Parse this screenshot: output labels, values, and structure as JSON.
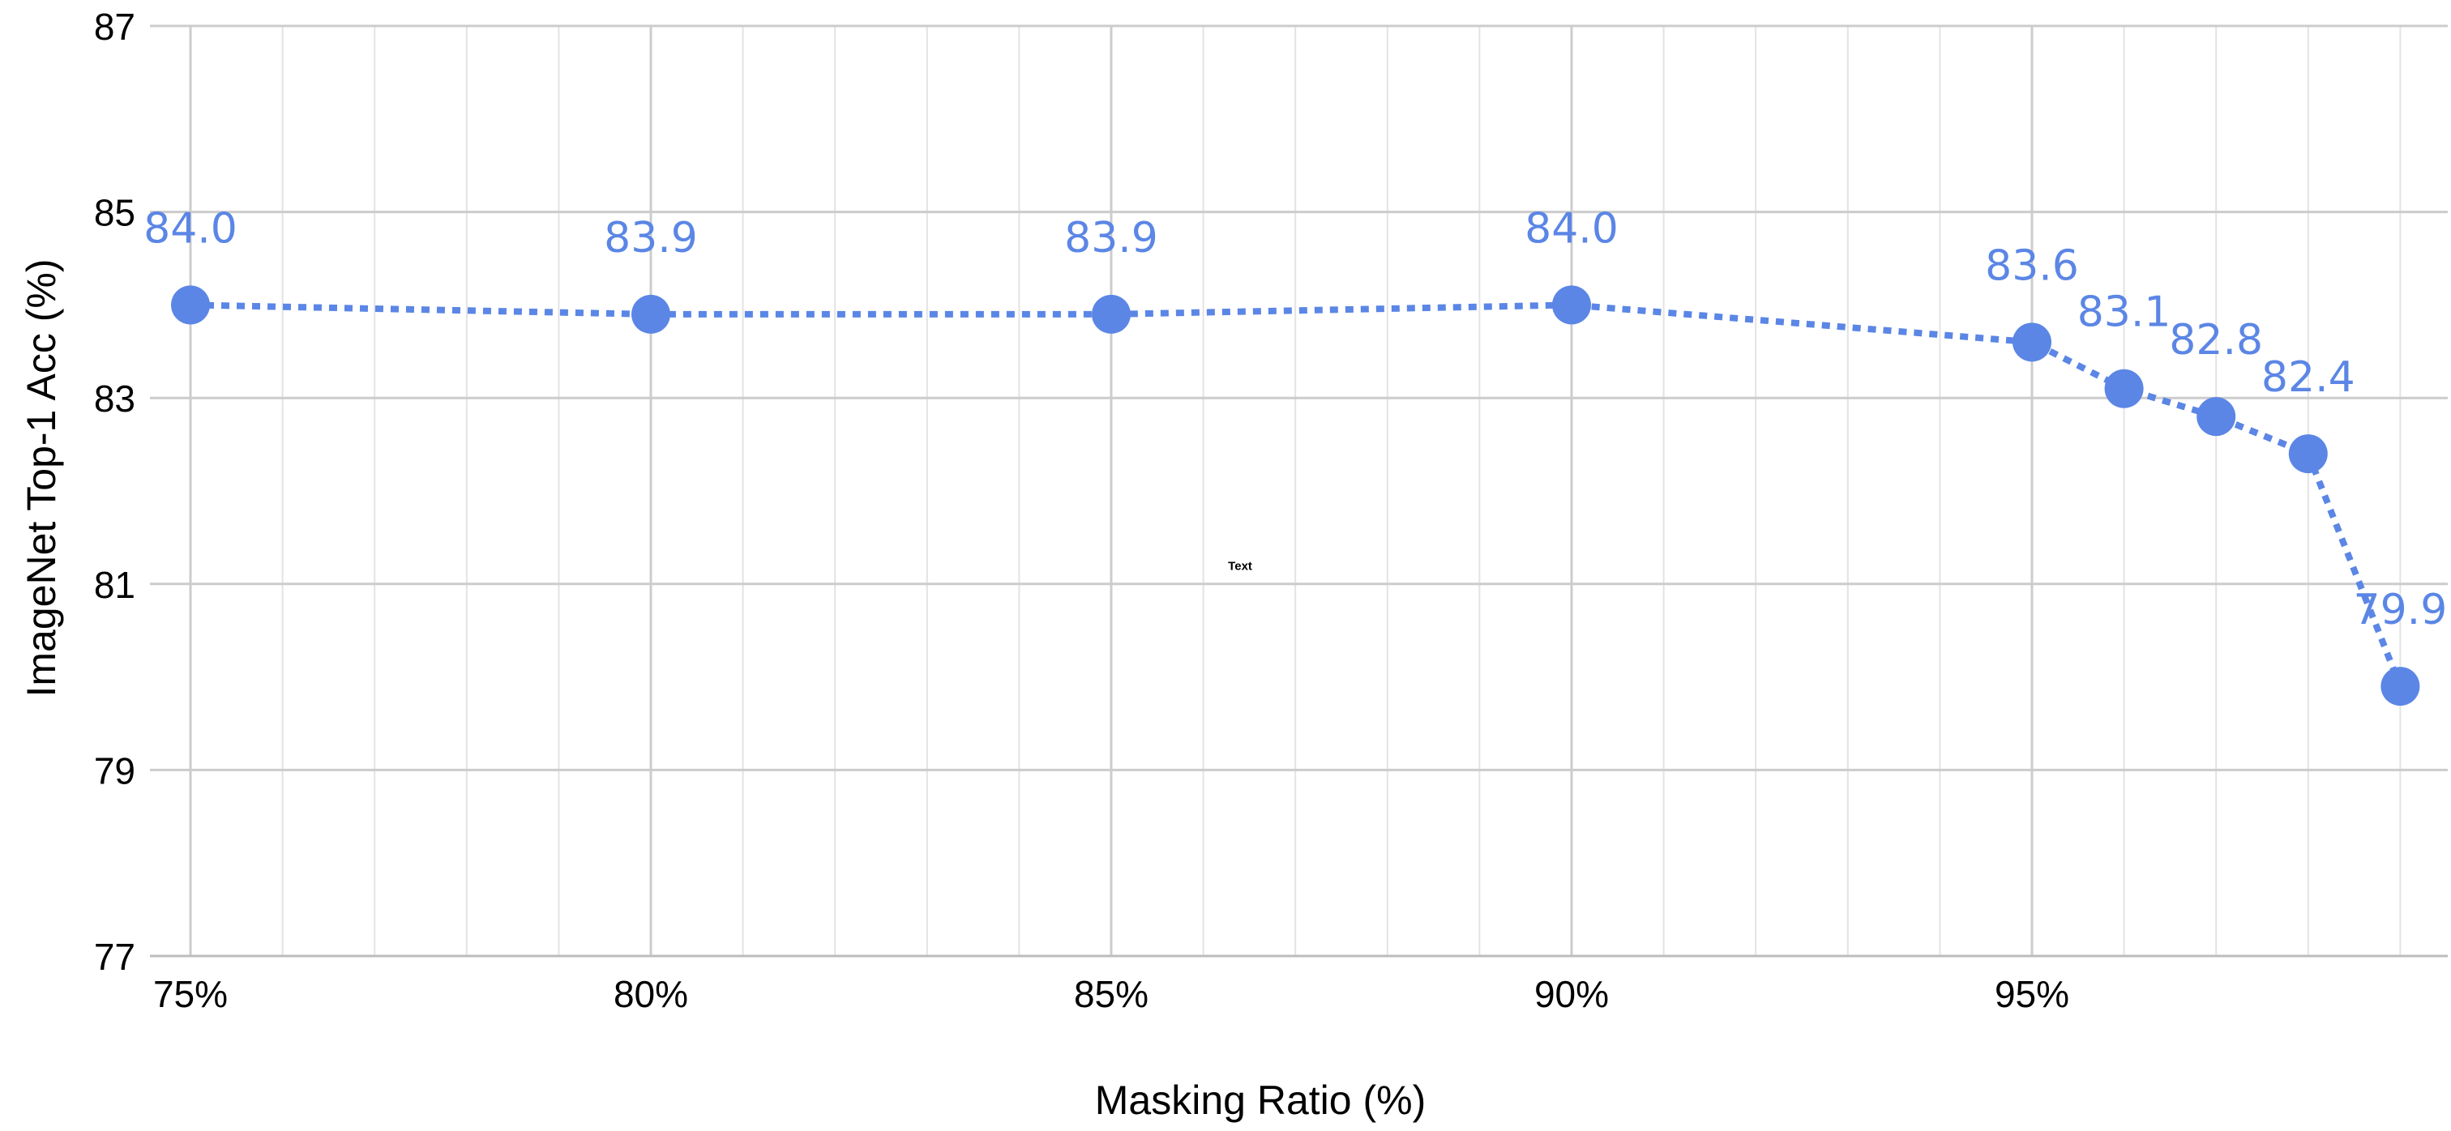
{
  "chart_data": {
    "type": "line",
    "title": "",
    "xlabel": "Masking Ratio (%)",
    "ylabel": "ImageNet Top-1 Acc (%)",
    "xlim": [
      75,
      99
    ],
    "ylim": [
      77,
      87
    ],
    "x_ticks": [
      75,
      80,
      85,
      90,
      95
    ],
    "x_tick_labels": [
      "75%",
      "80%",
      "85%",
      "90%",
      "95%"
    ],
    "y_ticks": [
      77,
      79,
      81,
      83,
      85,
      87
    ],
    "y_tick_labels": [
      "77",
      "79",
      "81",
      "83",
      "85",
      "87"
    ],
    "grid": true,
    "legend": "none",
    "line_style": "dotted",
    "series": [
      {
        "color": "#5b86e5",
        "x": [
          75,
          80,
          85,
          90,
          95,
          96,
          97,
          98,
          99
        ],
        "y": [
          84.0,
          83.9,
          83.9,
          84.0,
          83.6,
          83.1,
          82.8,
          82.4,
          79.9
        ],
        "labels": [
          "84.0",
          "83.9",
          "83.9",
          "84.0",
          "83.6",
          "83.1",
          "82.8",
          "82.4",
          "79.9"
        ]
      }
    ],
    "annotations": [
      {
        "text": "Text",
        "x": 86.4,
        "y": 81.15
      }
    ]
  }
}
